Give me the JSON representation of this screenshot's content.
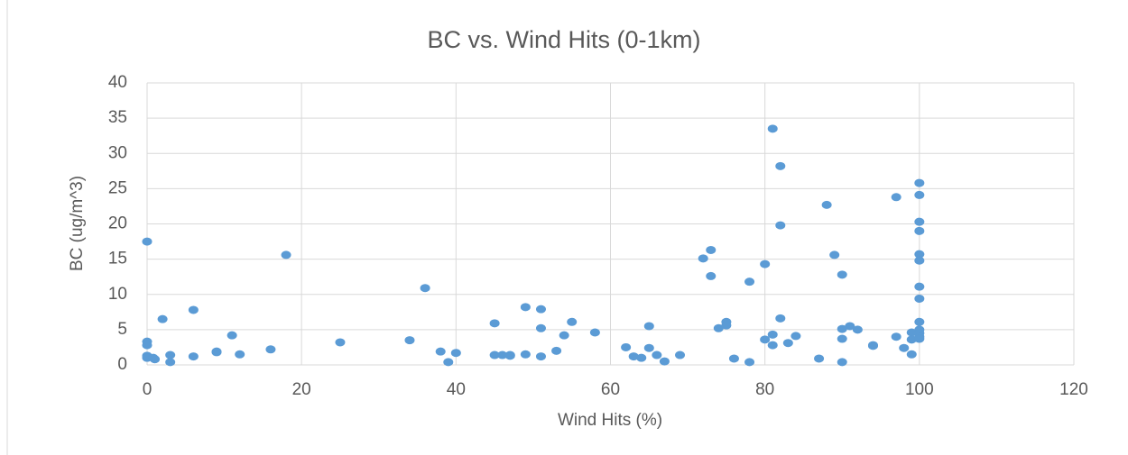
{
  "chart_data": {
    "type": "scatter",
    "title": "BC vs. Wind Hits (0-1km)",
    "x_label": "Wind Hits (%)",
    "y_label": "BC (ug/m^3)",
    "xlim": [
      0,
      120
    ],
    "xticks": [
      0,
      20,
      40,
      60,
      80,
      100,
      120
    ],
    "ylim": [
      0,
      40
    ],
    "yticks": [
      0,
      5,
      10,
      15,
      20,
      25,
      30,
      35,
      40
    ],
    "grid": true,
    "color": "#5b9bd5",
    "x": [
      0,
      0,
      0,
      0,
      0,
      0.8,
      1,
      2,
      3,
      3,
      6,
      6,
      9,
      9,
      11,
      12,
      16,
      18,
      25,
      34,
      36,
      38,
      39,
      40,
      45,
      45,
      46,
      47,
      47,
      49,
      49,
      51,
      51,
      51,
      53,
      54,
      55,
      58,
      62,
      63,
      64,
      65,
      65,
      66,
      67,
      69,
      72,
      73,
      73,
      74,
      75,
      75,
      76,
      78,
      78,
      80,
      80,
      81,
      81,
      81,
      82,
      82,
      82,
      83,
      84,
      88,
      87,
      89,
      90,
      90,
      90,
      90,
      91,
      92,
      94,
      94,
      97,
      97,
      98,
      99,
      99,
      99,
      100,
      100,
      100,
      100,
      100,
      100,
      100,
      100,
      100,
      100,
      100,
      100,
      100
    ],
    "y": [
      17.5,
      3.3,
      2.8,
      1.3,
      1.0,
      1.0,
      0.8,
      6.5,
      1.4,
      0.4,
      7.8,
      1.2,
      1.8,
      1.9,
      4.2,
      1.5,
      2.2,
      15.6,
      3.2,
      3.5,
      10.9,
      1.9,
      0.4,
      1.7,
      5.9,
      1.4,
      1.4,
      1.3,
      1.4,
      1.5,
      8.2,
      7.9,
      5.2,
      1.2,
      2.0,
      4.2,
      6.1,
      4.6,
      2.5,
      1.2,
      1.0,
      5.5,
      2.4,
      1.4,
      0.5,
      1.4,
      15.1,
      16.3,
      12.6,
      5.2,
      6.1,
      5.6,
      0.9,
      11.8,
      0.4,
      14.3,
      3.6,
      33.5,
      4.3,
      2.8,
      28.2,
      19.8,
      6.6,
      3.1,
      4.1,
      22.7,
      0.9,
      15.6,
      12.8,
      5.1,
      3.7,
      0.4,
      5.5,
      5.0,
      2.8,
      2.7,
      23.8,
      4.0,
      2.4,
      1.5,
      4.6,
      3.6,
      25.8,
      24.1,
      20.3,
      19,
      15.7,
      14.8,
      11.1,
      9.4,
      6.1,
      5.0,
      4.5,
      4.0,
      3.7
    ]
  }
}
